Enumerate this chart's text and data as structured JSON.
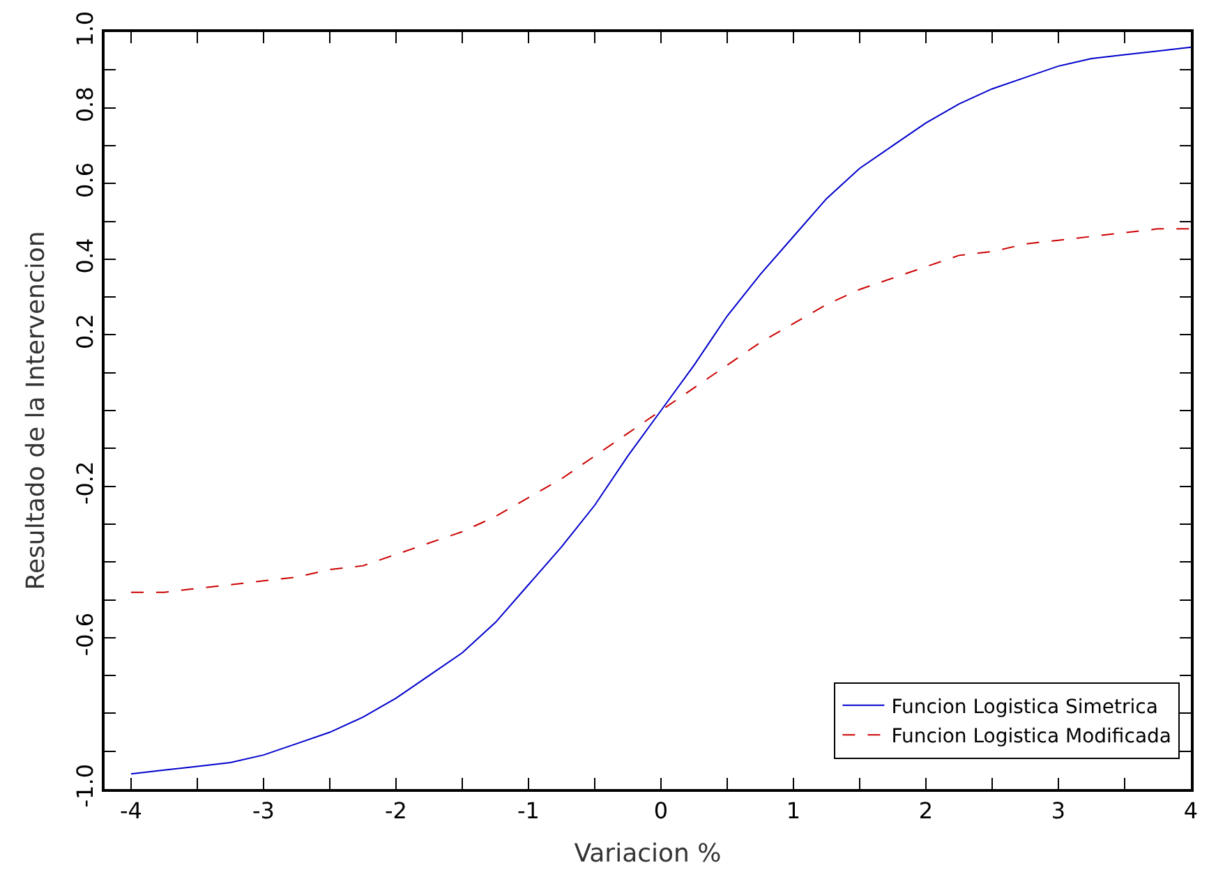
{
  "chart_data": {
    "type": "line",
    "xlabel": "Variacion %",
    "ylabel": "Resultado de la Intervencion",
    "x": [
      -4,
      -3.75,
      -3.5,
      -3.25,
      -3,
      -2.75,
      -2.5,
      -2.25,
      -2,
      -1.75,
      -1.5,
      -1.25,
      -1,
      -0.75,
      -0.5,
      -0.25,
      0,
      0.25,
      0.5,
      0.75,
      1,
      1.25,
      1.5,
      1.75,
      2,
      2.25,
      2.5,
      2.75,
      3,
      3.25,
      3.5,
      3.75,
      4
    ],
    "series": [
      {
        "name": "Funcion Logistica Simetrica",
        "color": "#0000cc",
        "line_style": "solid",
        "values": [
          -0.96,
          -0.95,
          -0.94,
          -0.93,
          -0.91,
          -0.88,
          -0.85,
          -0.81,
          -0.76,
          -0.7,
          -0.64,
          -0.56,
          -0.46,
          -0.36,
          -0.25,
          -0.12,
          0,
          0.12,
          0.25,
          0.36,
          0.46,
          0.56,
          0.64,
          0.7,
          0.76,
          0.81,
          0.85,
          0.88,
          0.91,
          0.93,
          0.94,
          0.95,
          0.96
        ]
      },
      {
        "name": "Funcion Logistica Modificada",
        "color": "#cc0000",
        "line_style": "dashed",
        "values": [
          -0.48,
          -0.48,
          -0.47,
          -0.46,
          -0.45,
          -0.44,
          -0.42,
          -0.41,
          -0.38,
          -0.35,
          -0.32,
          -0.28,
          -0.23,
          -0.18,
          -0.12,
          -0.06,
          0,
          0.06,
          0.12,
          0.18,
          0.23,
          0.28,
          0.32,
          0.35,
          0.38,
          0.41,
          0.42,
          0.44,
          0.45,
          0.46,
          0.47,
          0.48,
          0.48
        ]
      }
    ],
    "xlim": [
      -4.2,
      4
    ],
    "ylim": [
      -1,
      1
    ],
    "xticks": [
      -4,
      {
        "value": -3.5,
        "label": null
      },
      -3,
      {
        "value": -2.5,
        "label": null
      },
      -2,
      {
        "value": -1.5,
        "label": null
      },
      -1,
      {
        "value": -0.5,
        "label": null
      },
      0,
      {
        "value": 0.5,
        "label": null
      },
      1,
      {
        "value": 1.5,
        "label": null
      },
      2,
      {
        "value": 2.5,
        "label": null
      },
      3,
      {
        "value": 3.5,
        "label": null
      },
      4
    ],
    "yticks": [
      {
        "value": -1,
        "label": "-1.0"
      },
      {
        "value": -0.9,
        "label": null
      },
      {
        "value": -0.8,
        "label": null
      },
      {
        "value": -0.7,
        "label": null
      },
      {
        "value": -0.6,
        "label": "-0.6"
      },
      {
        "value": -0.5,
        "label": null
      },
      {
        "value": -0.4,
        "label": null
      },
      {
        "value": -0.3,
        "label": null
      },
      {
        "value": -0.2,
        "label": "-0.2"
      },
      {
        "value": -0.1,
        "label": null
      },
      {
        "value": 0,
        "label": null
      },
      {
        "value": 0.1,
        "label": null
      },
      {
        "value": 0.2,
        "label": "0.2"
      },
      {
        "value": 0.3,
        "label": null
      },
      {
        "value": 0.4,
        "label": "0.4"
      },
      {
        "value": 0.5,
        "label": null
      },
      {
        "value": 0.6,
        "label": "0.6"
      },
      {
        "value": 0.7,
        "label": null
      },
      {
        "value": 0.8,
        "label": "0.8"
      },
      {
        "value": 0.9,
        "label": null
      },
      {
        "value": 1,
        "label": "1.0"
      }
    ],
    "legend": "bottom right",
    "marker": "none"
  }
}
